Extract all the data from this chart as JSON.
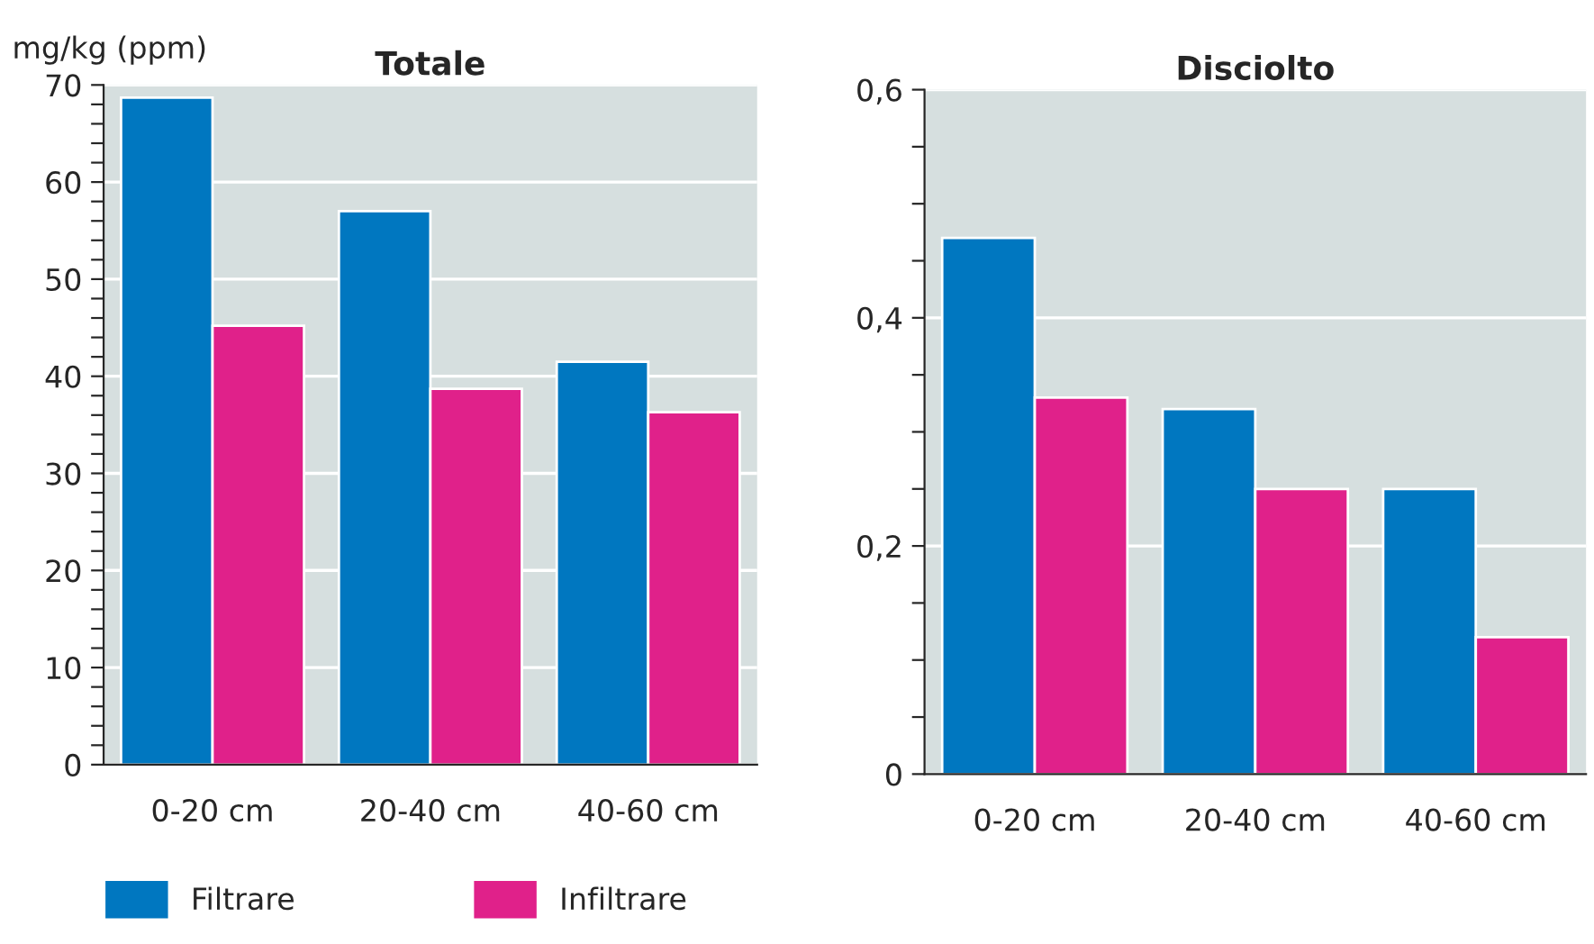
{
  "chart_data": [
    {
      "type": "bar",
      "title": "Totale",
      "ylabel": "mg/kg (ppm)",
      "categories": [
        "0-20 cm",
        "20-40 cm",
        "40-60 cm"
      ],
      "series": [
        {
          "name": "Filtrare",
          "color": "#0077c0",
          "values": [
            68.7,
            57.0,
            41.5
          ]
        },
        {
          "name": "Infiltrare",
          "color": "#e0218a",
          "values": [
            45.2,
            38.7,
            36.3
          ]
        }
      ],
      "ylim": [
        0,
        70
      ],
      "yticks": [
        0,
        {
          "value": 2,
          "label": null
        },
        {
          "value": 4,
          "label": null
        },
        {
          "value": 6,
          "label": null
        },
        {
          "value": 8,
          "label": null
        },
        10,
        {
          "value": 12,
          "label": null
        },
        {
          "value": 14,
          "label": null
        },
        {
          "value": 16,
          "label": null
        },
        {
          "value": 18,
          "label": null
        },
        20,
        {
          "value": 22,
          "label": null
        },
        {
          "value": 24,
          "label": null
        },
        {
          "value": 26,
          "label": null
        },
        {
          "value": 28,
          "label": null
        },
        30,
        {
          "value": 32,
          "label": null
        },
        {
          "value": 34,
          "label": null
        },
        {
          "value": 36,
          "label": null
        },
        {
          "value": 38,
          "label": null
        },
        40,
        {
          "value": 42,
          "label": null
        },
        {
          "value": 44,
          "label": null
        },
        {
          "value": 46,
          "label": null
        },
        {
          "value": 48,
          "label": null
        },
        50,
        {
          "value": 52,
          "label": null
        },
        {
          "value": 54,
          "label": null
        },
        {
          "value": 56,
          "label": null
        },
        {
          "value": 58,
          "label": null
        },
        60,
        {
          "value": 62,
          "label": null
        },
        {
          "value": 64,
          "label": null
        },
        {
          "value": 66,
          "label": null
        },
        {
          "value": 68,
          "label": null
        },
        70
      ],
      "grid": "y",
      "legend": "bottom"
    },
    {
      "type": "bar",
      "title": "Disciolto",
      "categories": [
        "0-20 cm",
        "20-40 cm",
        "40-60 cm"
      ],
      "series": [
        {
          "color": "#0077c0",
          "values": [
            0.47,
            0.32,
            0.25
          ]
        },
        {
          "color": "#e0218a",
          "values": [
            0.33,
            0.25,
            0.12
          ]
        }
      ],
      "ylim": [
        0,
        0.6
      ],
      "yticks": [
        {
          "value": 0,
          "label": "0"
        },
        {
          "value": 0.05,
          "label": null
        },
        {
          "value": 0.1,
          "label": null
        },
        {
          "value": 0.15,
          "label": null
        },
        {
          "value": 0.2,
          "label": "0,2"
        },
        {
          "value": 0.25,
          "label": null
        },
        {
          "value": 0.3,
          "label": null
        },
        {
          "value": 0.35,
          "label": null
        },
        {
          "value": 0.4,
          "label": "0,4"
        },
        {
          "value": 0.45,
          "label": null
        },
        {
          "value": 0.5,
          "label": null
        },
        {
          "value": 0.55,
          "label": null
        },
        {
          "value": 0.6,
          "label": "0,6"
        }
      ],
      "grid": "y"
    }
  ]
}
